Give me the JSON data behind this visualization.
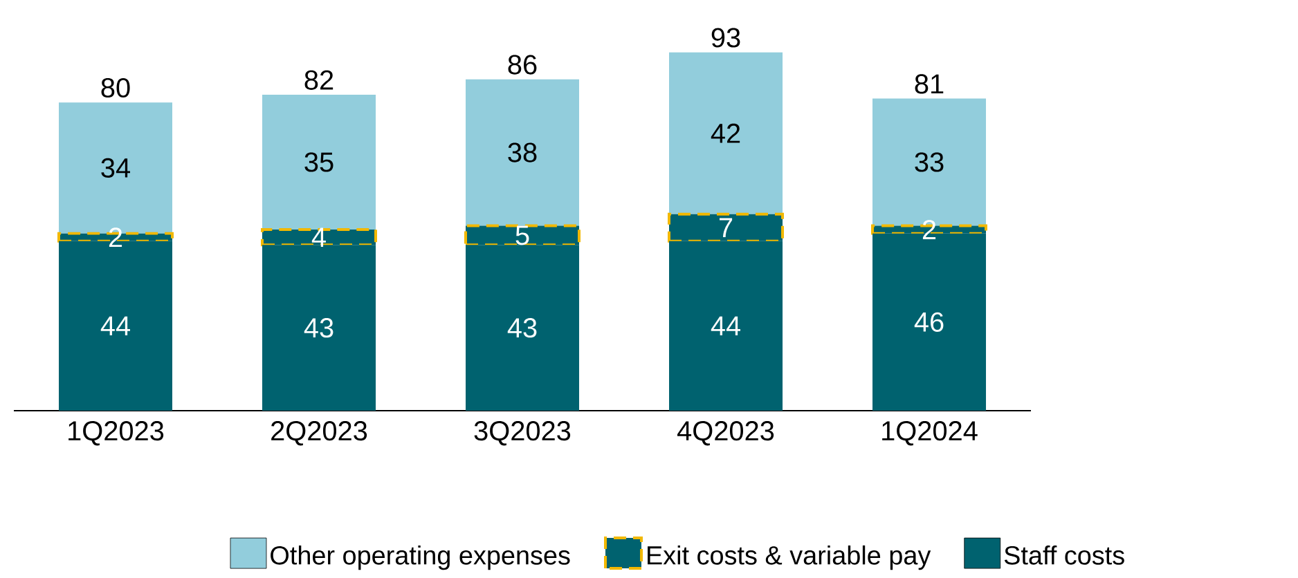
{
  "chart_data": {
    "type": "bar",
    "stacked": true,
    "data_labels": true,
    "legend": "bottom",
    "categories": [
      "1Q2023",
      "2Q2023",
      "3Q2023",
      "4Q2023",
      "1Q2024"
    ],
    "series": [
      {
        "name": "Staff costs",
        "color": "#00626f",
        "values": [
          44,
          43,
          43,
          44,
          46
        ]
      },
      {
        "name": "Exit costs & variable pay",
        "color": "#00626f",
        "line_style": "dashed",
        "values": [
          2,
          4,
          5,
          7,
          2
        ]
      },
      {
        "name": "Other operating expenses",
        "color": "#92cddc",
        "values": [
          34,
          35,
          38,
          42,
          33
        ]
      }
    ],
    "totals": [
      "80",
      "82",
      "86",
      "93",
      "81"
    ]
  }
}
